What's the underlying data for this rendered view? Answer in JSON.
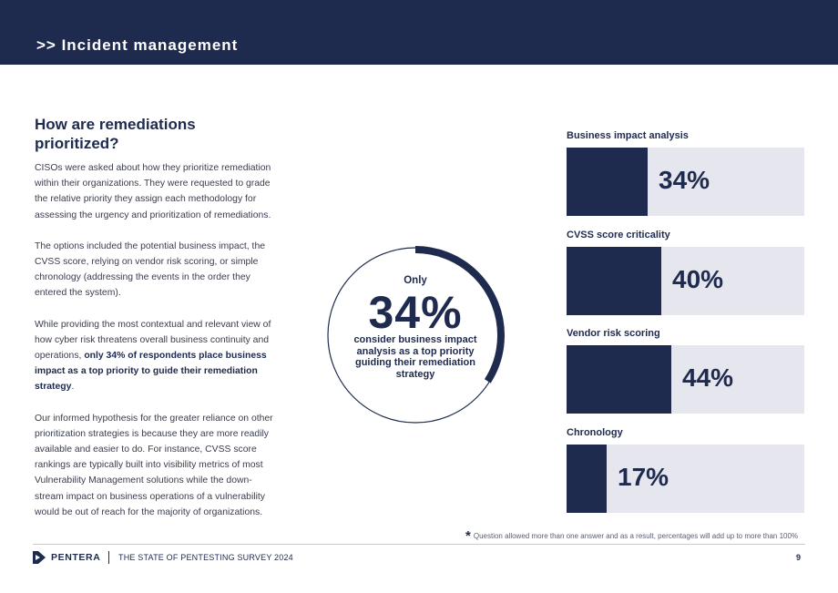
{
  "header": {
    "title": ">> Incident management"
  },
  "article": {
    "heading": "How are remediations prioritized?",
    "paragraphs": [
      "CISOs were asked about how  they prioritize remediation within their organizations. They were requested to grade the relative priority they assign each methodology for assessing the urgency and prioritization of remediations.",
      "The options included the potential business impact, the CVSS score, relying on vendor risk scoring, or simple chronology (addressing the events in the order they entered the system).",
      "Our informed hypothesis for the greater reliance on other prioritization strategies is because they are more readily available and easier to do. For instance, CVSS score rankings are typically built into visibility metrics of most Vulnerability Management solutions while the down-stream impact on business operations of a vulnerability would be out of reach for the majority of organizations."
    ],
    "p3_pre": "While providing the most contextual and relevant view of how cyber risk threatens overall business continuity and operations,",
    "p3_bold": "only 34% of respondents place business impact as a top priority to guide their remediation strategy",
    "p3_post": "."
  },
  "callout": {
    "prefix": "Only",
    "value_label": "34%",
    "value": 34,
    "caption": "consider business impact analysis as a top priority guiding their remediation strategy"
  },
  "chart_data": {
    "type": "bar",
    "orientation": "horizontal",
    "categories": [
      "Business impact analysis",
      "CVSS score criticality",
      "Vendor risk scoring",
      "Chronology"
    ],
    "values": [
      34,
      40,
      44,
      17
    ],
    "value_labels": [
      "34%",
      "40%",
      "44%",
      "17%"
    ],
    "xlim": [
      0,
      100
    ]
  },
  "footnote": {
    "mark": "*",
    "text": "Question allowed more than one answer and as a result, percentages will add up to more than 100%"
  },
  "footer": {
    "brand": "PENTERA",
    "survey": "THE STATE OF PENTESTING SURVEY 2024",
    "page": "9"
  },
  "colors": {
    "navy": "#1e2a4e",
    "track": "#e6e6ee",
    "text": "#3a3d4d"
  }
}
